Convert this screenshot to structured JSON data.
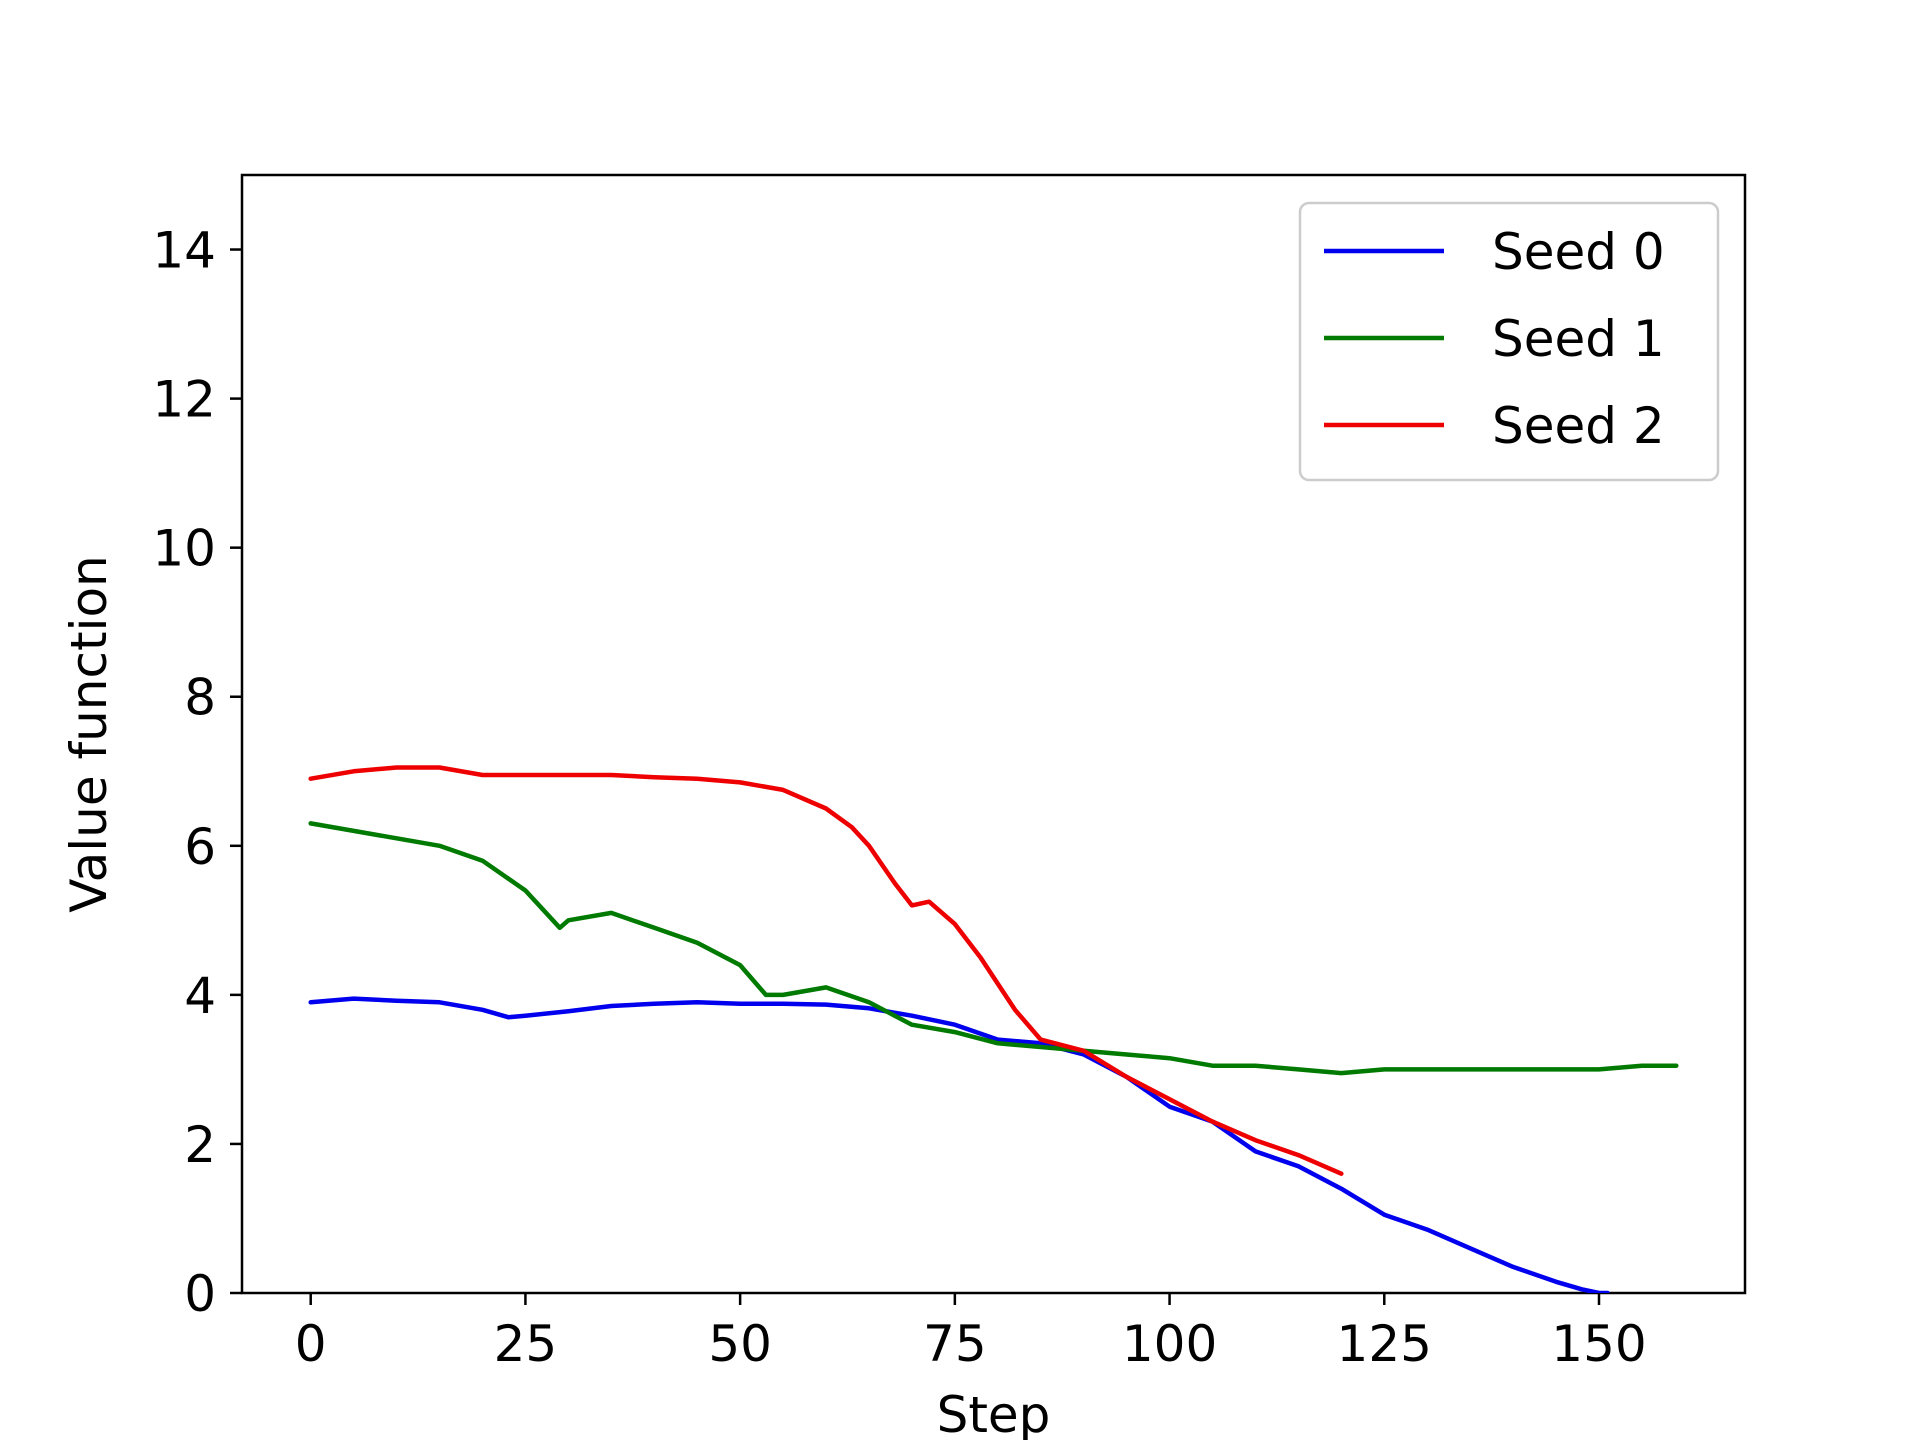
{
  "chart_data": {
    "type": "line",
    "title": "",
    "xlabel": "Step",
    "ylabel": "Value function",
    "xlim": [
      -8,
      167
    ],
    "ylim": [
      0,
      15
    ],
    "xticks": [
      0,
      25,
      50,
      75,
      100,
      125,
      150
    ],
    "yticks": [
      0,
      2,
      4,
      6,
      8,
      10,
      12,
      14
    ],
    "grid": false,
    "legend_position": "top-right",
    "series": [
      {
        "name": "Seed 0",
        "color": "#0000ee",
        "x": [
          0,
          5,
          10,
          15,
          20,
          23,
          25,
          30,
          35,
          40,
          45,
          50,
          55,
          60,
          65,
          70,
          75,
          80,
          85,
          90,
          95,
          100,
          105,
          110,
          115,
          120,
          125,
          130,
          135,
          140,
          145,
          148,
          150,
          151
        ],
        "y": [
          3.9,
          3.95,
          3.92,
          3.9,
          3.8,
          3.7,
          3.72,
          3.78,
          3.85,
          3.88,
          3.9,
          3.88,
          3.88,
          3.87,
          3.82,
          3.72,
          3.6,
          3.4,
          3.35,
          3.2,
          2.9,
          2.5,
          2.3,
          1.9,
          1.7,
          1.4,
          1.05,
          0.85,
          0.6,
          0.35,
          0.15,
          0.05,
          0.0,
          0.0
        ]
      },
      {
        "name": "Seed 1",
        "color": "#007a00",
        "x": [
          0,
          5,
          10,
          15,
          20,
          25,
          29,
          30,
          35,
          40,
          45,
          50,
          53,
          55,
          60,
          65,
          70,
          75,
          80,
          85,
          90,
          95,
          100,
          105,
          110,
          115,
          120,
          125,
          130,
          135,
          140,
          145,
          150,
          155,
          159
        ],
        "y": [
          6.3,
          6.2,
          6.1,
          6.0,
          5.8,
          5.4,
          4.9,
          5.0,
          5.1,
          4.9,
          4.7,
          4.4,
          4.0,
          4.0,
          4.1,
          3.9,
          3.6,
          3.5,
          3.35,
          3.3,
          3.25,
          3.2,
          3.15,
          3.05,
          3.05,
          3.0,
          2.95,
          3.0,
          3.0,
          3.0,
          3.0,
          3.0,
          3.0,
          3.05,
          3.05
        ]
      },
      {
        "name": "Seed 2",
        "color": "#ee0000",
        "x": [
          0,
          5,
          10,
          15,
          20,
          25,
          30,
          35,
          40,
          45,
          50,
          55,
          60,
          63,
          65,
          68,
          70,
          72,
          75,
          78,
          80,
          82,
          85,
          90,
          95,
          100,
          105,
          110,
          115,
          120
        ],
        "y": [
          6.9,
          7.0,
          7.05,
          7.05,
          6.95,
          6.95,
          6.95,
          6.95,
          6.92,
          6.9,
          6.85,
          6.75,
          6.5,
          6.25,
          6.0,
          5.5,
          5.2,
          5.25,
          4.95,
          4.5,
          4.15,
          3.8,
          3.4,
          3.25,
          2.9,
          2.6,
          2.3,
          2.05,
          1.85,
          1.6
        ]
      }
    ]
  }
}
